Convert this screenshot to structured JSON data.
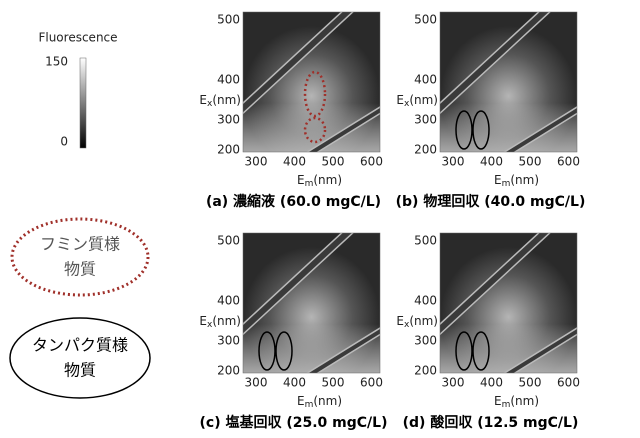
{
  "colorbar": {
    "title": "Fluorescence",
    "ticks": [
      "150",
      "0"
    ]
  },
  "panels": [
    {
      "caption": "(a) 濃縮液 (60.0 mgC/L)",
      "x_ticks": [
        "300",
        "400",
        "500",
        "600"
      ],
      "y_ticks": [
        "200",
        "300",
        "400",
        "500"
      ],
      "x_label": {
        "symbol": "E",
        "sub": "m",
        "unit": "(nm)"
      },
      "y_label": {
        "symbol": "E",
        "sub": "x",
        "unit": "(nm)"
      }
    },
    {
      "caption": "(b) 物理回収 (40.0 mgC/L)",
      "x_ticks": [
        "300",
        "400",
        "500",
        "600"
      ],
      "y_ticks": [
        "200",
        "300",
        "400",
        "500"
      ],
      "x_label": {
        "symbol": "E",
        "sub": "m",
        "unit": "(nm)"
      },
      "y_label": {
        "symbol": "E",
        "sub": "x",
        "unit": "(nm)"
      }
    },
    {
      "caption": "(c) 塩基回収 (25.0 mgC/L)",
      "x_ticks": [
        "300",
        "400",
        "500",
        "600"
      ],
      "y_ticks": [
        "200",
        "300",
        "400",
        "500"
      ],
      "x_label": {
        "symbol": "E",
        "sub": "m",
        "unit": "(nm)"
      },
      "y_label": {
        "symbol": "E",
        "sub": "x",
        "unit": "(nm)"
      }
    },
    {
      "caption": "(d) 酸回収 (12.5 mgC/L)",
      "x_ticks": [
        "300",
        "400",
        "500",
        "600"
      ],
      "y_ticks": [
        "200",
        "300",
        "400",
        "500"
      ],
      "x_label": {
        "symbol": "E",
        "sub": "m",
        "unit": "(nm)"
      },
      "y_label": {
        "symbol": "E",
        "sub": "x",
        "unit": "(nm)"
      }
    }
  ],
  "legend": [
    {
      "lines": [
        "フミン質様",
        "物質"
      ]
    },
    {
      "lines": [
        "タンパク質様",
        "物質"
      ]
    }
  ]
}
